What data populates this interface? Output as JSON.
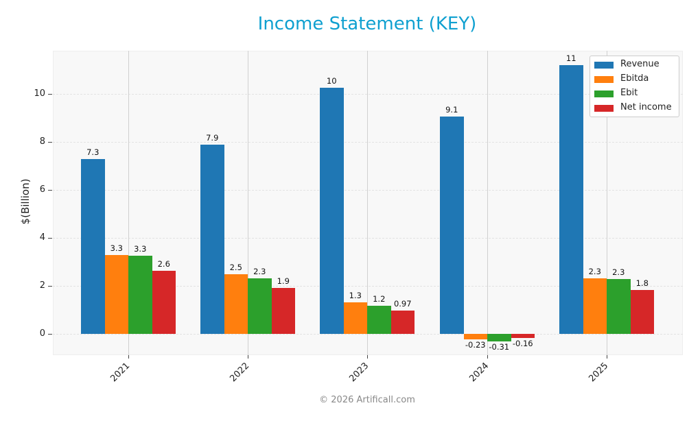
{
  "title": "Income Statement (KEY)",
  "footer": "© 2026 Artificall.com",
  "y_axis_label": "$(Billion)",
  "legend": [
    {
      "label": "Revenue",
      "color": "#1f77b4"
    },
    {
      "label": "Ebitda",
      "color": "#ff7f0e"
    },
    {
      "label": "Ebit",
      "color": "#2ca02c"
    },
    {
      "label": "Net income",
      "color": "#d62728"
    }
  ],
  "chart_data": {
    "type": "bar",
    "title": "Income Statement (KEY)",
    "xlabel": "",
    "ylabel": "$(Billion)",
    "categories": [
      "2021",
      "2022",
      "2023",
      "2024",
      "2025"
    ],
    "series": [
      {
        "name": "Revenue",
        "color": "#1f77b4",
        "values": [
          7.3,
          7.9,
          10.26,
          9.06,
          11.2
        ],
        "labels": [
          "7.3",
          "7.9",
          "10",
          "9.1",
          "11"
        ]
      },
      {
        "name": "Ebitda",
        "color": "#ff7f0e",
        "values": [
          3.29,
          2.49,
          1.31,
          -0.23,
          2.31
        ],
        "labels": [
          "3.3",
          "2.5",
          "1.3",
          "-0.23",
          "2.3"
        ]
      },
      {
        "name": "Ebit",
        "color": "#2ca02c",
        "values": [
          3.26,
          2.31,
          1.16,
          -0.31,
          2.29
        ],
        "labels": [
          "3.3",
          "2.3",
          "1.2",
          "-0.31",
          "2.3"
        ]
      },
      {
        "name": "Net income",
        "color": "#d62728",
        "values": [
          2.63,
          1.91,
          0.97,
          -0.16,
          1.83
        ],
        "labels": [
          "2.6",
          "1.9",
          "0.97",
          "-0.16",
          "1.8"
        ]
      }
    ],
    "yticks": [
      0,
      2,
      4,
      6,
      8,
      10
    ],
    "ylim": [
      -0.9,
      11.8
    ],
    "grid": true,
    "legend_position": "upper right"
  }
}
